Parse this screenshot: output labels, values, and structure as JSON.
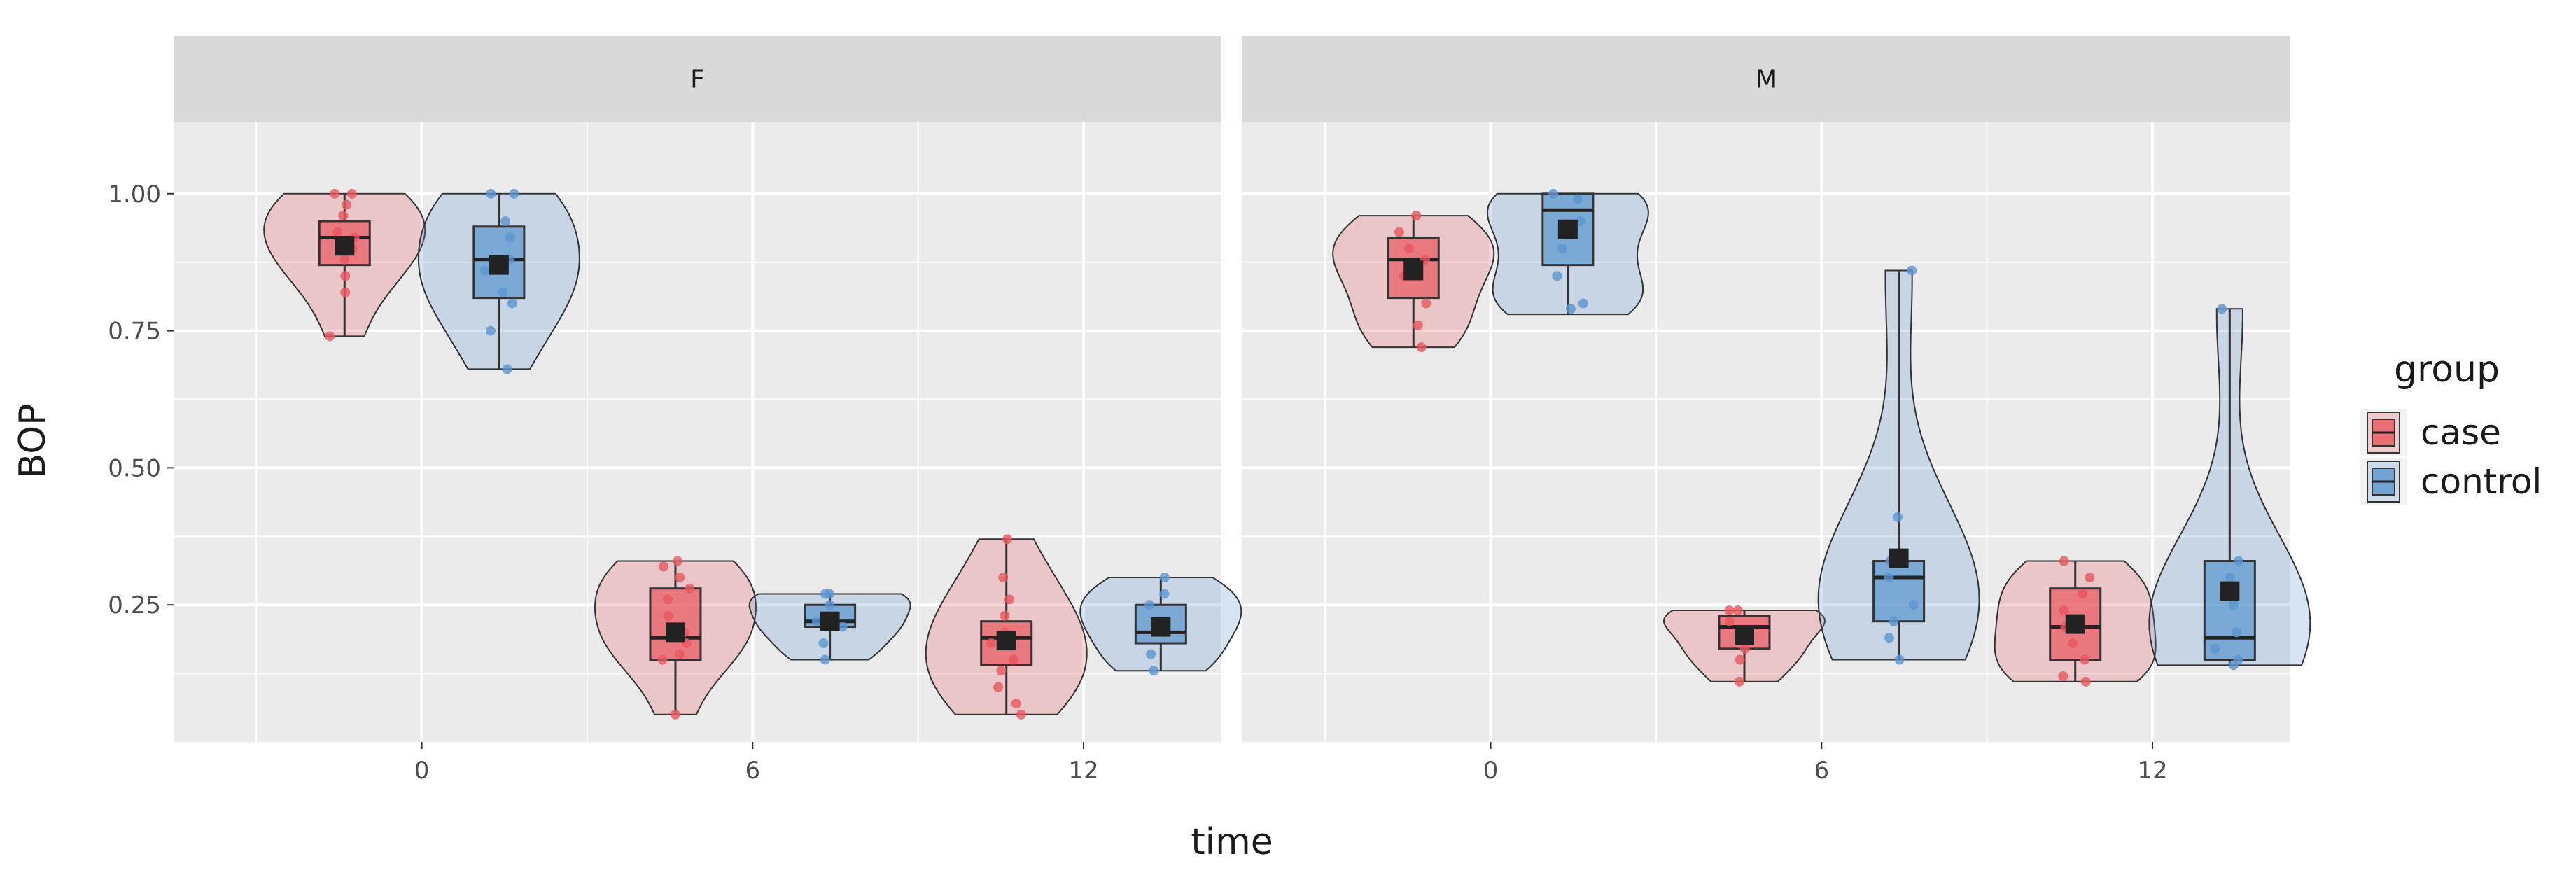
{
  "chart_data": {
    "type": "violin-box-jitter",
    "xlabel": "time",
    "ylabel": "BOP",
    "x_ticks": [
      "0",
      "6",
      "12"
    ],
    "y_ticks": [
      "1.00",
      "0.75",
      "0.50",
      "0.25"
    ],
    "ylim": [
      0.0,
      1.13
    ],
    "legend": {
      "title": "group",
      "position": "right",
      "items": [
        {
          "name": "case",
          "color": "#E8585F"
        },
        {
          "name": "control",
          "color": "#5B95CF"
        }
      ]
    },
    "colors": {
      "case_fill": "#E8585F",
      "control_fill": "#5B95CF",
      "panel_bg": "#EBEBEB",
      "strip_bg": "#D9D9D9",
      "grid": "#FFFFFF",
      "mean_marker": "#222222"
    },
    "facets": [
      {
        "label": "F",
        "groups": [
          {
            "time": "0",
            "group": "case",
            "violin_min": 0.74,
            "violin_max": 1.0,
            "q1": 0.87,
            "median": 0.92,
            "q3": 0.95,
            "whisker_low": 0.74,
            "whisker_high": 1.0,
            "mean": 0.905,
            "points": [
              1.0,
              1.0,
              0.98,
              0.96,
              0.93,
              0.92,
              0.9,
              0.88,
              0.85,
              0.82,
              0.74
            ]
          },
          {
            "time": "0",
            "group": "control",
            "violin_min": 0.68,
            "violin_max": 1.0,
            "q1": 0.81,
            "median": 0.88,
            "q3": 0.94,
            "whisker_low": 0.68,
            "whisker_high": 1.0,
            "mean": 0.87,
            "points": [
              1.0,
              1.0,
              0.95,
              0.92,
              0.88,
              0.86,
              0.82,
              0.8,
              0.75,
              0.68
            ]
          },
          {
            "time": "6",
            "group": "case",
            "violin_min": 0.05,
            "violin_max": 0.33,
            "q1": 0.15,
            "median": 0.19,
            "q3": 0.28,
            "whisker_low": 0.05,
            "whisker_high": 0.33,
            "mean": 0.2,
            "points": [
              0.33,
              0.32,
              0.3,
              0.28,
              0.26,
              0.23,
              0.2,
              0.18,
              0.16,
              0.15,
              0.05
            ]
          },
          {
            "time": "6",
            "group": "control",
            "violin_min": 0.15,
            "violin_max": 0.27,
            "q1": 0.21,
            "median": 0.22,
            "q3": 0.25,
            "whisker_low": 0.15,
            "whisker_high": 0.27,
            "mean": 0.22,
            "points": [
              0.27,
              0.27,
              0.25,
              0.22,
              0.21,
              0.18,
              0.15
            ]
          },
          {
            "time": "12",
            "group": "case",
            "violin_min": 0.05,
            "violin_max": 0.37,
            "q1": 0.14,
            "median": 0.19,
            "q3": 0.22,
            "whisker_low": 0.05,
            "whisker_high": 0.37,
            "mean": 0.185,
            "points": [
              0.37,
              0.3,
              0.26,
              0.23,
              0.2,
              0.18,
              0.15,
              0.13,
              0.1,
              0.07,
              0.05
            ]
          },
          {
            "time": "12",
            "group": "control",
            "violin_min": 0.13,
            "violin_max": 0.3,
            "q1": 0.18,
            "median": 0.2,
            "q3": 0.25,
            "whisker_low": 0.13,
            "whisker_high": 0.3,
            "mean": 0.21,
            "points": [
              0.3,
              0.27,
              0.25,
              0.22,
              0.2,
              0.16,
              0.13
            ]
          }
        ]
      },
      {
        "label": "M",
        "groups": [
          {
            "time": "0",
            "group": "case",
            "violin_min": 0.72,
            "violin_max": 0.96,
            "q1": 0.81,
            "median": 0.88,
            "q3": 0.92,
            "whisker_low": 0.72,
            "whisker_high": 0.96,
            "mean": 0.86,
            "points": [
              0.96,
              0.93,
              0.9,
              0.88,
              0.85,
              0.8,
              0.76,
              0.72
            ]
          },
          {
            "time": "0",
            "group": "control",
            "violin_min": 0.78,
            "violin_max": 1.0,
            "q1": 0.87,
            "median": 0.97,
            "q3": 1.0,
            "whisker_low": 0.78,
            "whisker_high": 1.0,
            "mean": 0.935,
            "points": [
              1.0,
              0.99,
              0.95,
              0.9,
              0.85,
              0.8,
              0.79
            ]
          },
          {
            "time": "6",
            "group": "case",
            "violin_min": 0.11,
            "violin_max": 0.24,
            "q1": 0.17,
            "median": 0.21,
            "q3": 0.23,
            "whisker_low": 0.11,
            "whisker_high": 0.24,
            "mean": 0.195,
            "points": [
              0.24,
              0.24,
              0.22,
              0.2,
              0.17,
              0.15,
              0.11
            ]
          },
          {
            "time": "6",
            "group": "control",
            "violin_min": 0.15,
            "violin_max": 0.86,
            "q1": 0.22,
            "median": 0.3,
            "q3": 0.33,
            "whisker_low": 0.15,
            "whisker_high": 0.86,
            "mean": 0.335,
            "points": [
              0.86,
              0.41,
              0.33,
              0.3,
              0.25,
              0.22,
              0.19,
              0.15
            ]
          },
          {
            "time": "12",
            "group": "case",
            "violin_min": 0.11,
            "violin_max": 0.33,
            "q1": 0.15,
            "median": 0.21,
            "q3": 0.28,
            "whisker_low": 0.11,
            "whisker_high": 0.33,
            "mean": 0.215,
            "points": [
              0.33,
              0.3,
              0.27,
              0.24,
              0.21,
              0.18,
              0.15,
              0.12,
              0.11
            ]
          },
          {
            "time": "12",
            "group": "control",
            "violin_min": 0.14,
            "violin_max": 0.79,
            "q1": 0.15,
            "median": 0.19,
            "q3": 0.33,
            "whisker_low": 0.14,
            "whisker_high": 0.79,
            "mean": 0.275,
            "points": [
              0.79,
              0.33,
              0.3,
              0.25,
              0.2,
              0.17,
              0.15,
              0.14
            ]
          }
        ]
      }
    ]
  }
}
